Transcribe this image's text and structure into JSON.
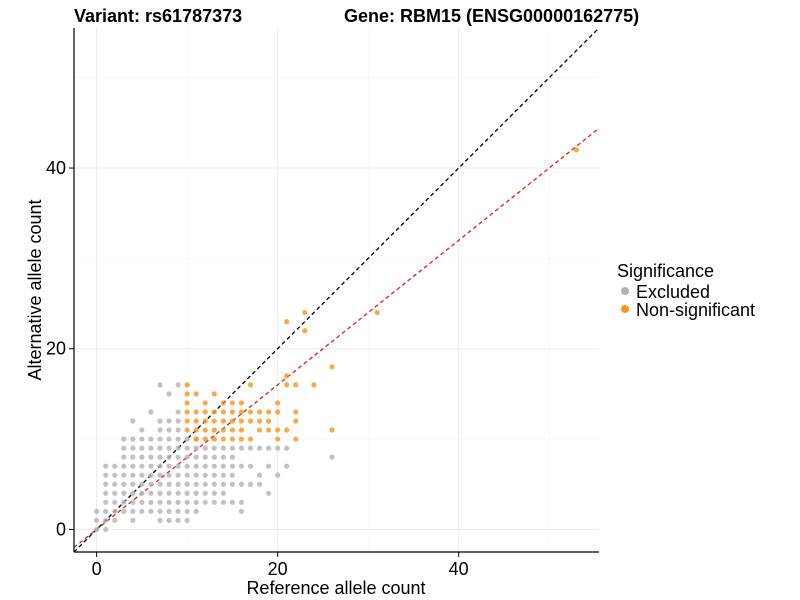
{
  "header": {
    "variant_title": "Variant: rs61787373",
    "gene_title": "Gene: RBM15 (ENSG00000162775)"
  },
  "chart_data": {
    "type": "scatter",
    "xlabel": "Reference allele count",
    "ylabel": "Alternative allele count",
    "xlim": [
      -2.5,
      55.5
    ],
    "ylim": [
      -2.5,
      55.5
    ],
    "x_ticks": [
      0,
      20,
      40
    ],
    "y_ticks": [
      0,
      20,
      40
    ],
    "grid": true,
    "legend": {
      "title": "Significance",
      "placement": "right",
      "items": [
        {
          "name": "Excluded",
          "color": "#b3b3b3"
        },
        {
          "name": "Non-significant",
          "color": "#f7941d"
        }
      ]
    },
    "reference_lines": [
      {
        "type": "y=x",
        "color": "#000000",
        "style": "dashed"
      },
      {
        "type": "fit",
        "slope": 0.8,
        "color": "#e41a1c",
        "style": "dashed"
      }
    ],
    "series": [
      {
        "name": "Excluded",
        "color": "#b3b3b3",
        "points": [
          [
            0,
            0
          ],
          [
            0,
            1
          ],
          [
            0,
            2
          ],
          [
            1,
            0
          ],
          [
            1,
            1
          ],
          [
            1,
            2
          ],
          [
            1,
            3
          ],
          [
            1,
            4
          ],
          [
            1,
            5
          ],
          [
            1,
            6
          ],
          [
            1,
            7
          ],
          [
            2,
            1
          ],
          [
            2,
            2
          ],
          [
            2,
            3
          ],
          [
            2,
            4
          ],
          [
            2,
            5
          ],
          [
            2,
            6
          ],
          [
            2,
            7
          ],
          [
            3,
            2
          ],
          [
            3,
            3
          ],
          [
            3,
            4
          ],
          [
            3,
            5
          ],
          [
            3,
            6
          ],
          [
            3,
            7
          ],
          [
            3,
            8
          ],
          [
            3,
            9
          ],
          [
            3,
            10
          ],
          [
            4,
            1
          ],
          [
            4,
            2
          ],
          [
            4,
            3
          ],
          [
            4,
            4
          ],
          [
            4,
            5
          ],
          [
            4,
            6
          ],
          [
            4,
            7
          ],
          [
            4,
            8
          ],
          [
            4,
            9
          ],
          [
            4,
            10
          ],
          [
            4,
            12
          ],
          [
            5,
            2
          ],
          [
            5,
            3
          ],
          [
            5,
            4
          ],
          [
            5,
            5
          ],
          [
            5,
            6
          ],
          [
            5,
            7
          ],
          [
            5,
            8
          ],
          [
            5,
            9
          ],
          [
            5,
            10
          ],
          [
            5,
            11
          ],
          [
            6,
            2
          ],
          [
            6,
            3
          ],
          [
            6,
            4
          ],
          [
            6,
            5
          ],
          [
            6,
            6
          ],
          [
            6,
            7
          ],
          [
            6,
            8
          ],
          [
            6,
            9
          ],
          [
            6,
            10
          ],
          [
            6,
            13
          ],
          [
            7,
            1
          ],
          [
            7,
            2
          ],
          [
            7,
            3
          ],
          [
            7,
            4
          ],
          [
            7,
            5
          ],
          [
            7,
            6
          ],
          [
            7,
            7
          ],
          [
            7,
            8
          ],
          [
            7,
            9
          ],
          [
            7,
            10
          ],
          [
            7,
            11
          ],
          [
            7,
            12
          ],
          [
            7,
            16
          ],
          [
            8,
            1
          ],
          [
            8,
            2
          ],
          [
            8,
            3
          ],
          [
            8,
            4
          ],
          [
            8,
            5
          ],
          [
            8,
            6
          ],
          [
            8,
            7
          ],
          [
            8,
            8
          ],
          [
            8,
            9
          ],
          [
            8,
            10
          ],
          [
            8,
            11
          ],
          [
            8,
            12
          ],
          [
            8,
            15
          ],
          [
            9,
            1
          ],
          [
            9,
            2
          ],
          [
            9,
            3
          ],
          [
            9,
            4
          ],
          [
            9,
            5
          ],
          [
            9,
            6
          ],
          [
            9,
            7
          ],
          [
            9,
            8
          ],
          [
            9,
            9
          ],
          [
            9,
            10
          ],
          [
            9,
            11
          ],
          [
            9,
            12
          ],
          [
            9,
            13
          ],
          [
            9,
            16
          ],
          [
            10,
            1
          ],
          [
            10,
            2
          ],
          [
            10,
            3
          ],
          [
            10,
            4
          ],
          [
            10,
            5
          ],
          [
            10,
            6
          ],
          [
            10,
            7
          ],
          [
            10,
            8
          ],
          [
            10,
            9
          ],
          [
            10,
            10
          ],
          [
            11,
            2
          ],
          [
            11,
            3
          ],
          [
            11,
            4
          ],
          [
            11,
            5
          ],
          [
            11,
            6
          ],
          [
            11,
            7
          ],
          [
            11,
            8
          ],
          [
            11,
            9
          ],
          [
            11,
            10
          ],
          [
            12,
            3
          ],
          [
            12,
            4
          ],
          [
            12,
            5
          ],
          [
            12,
            6
          ],
          [
            12,
            7
          ],
          [
            12,
            8
          ],
          [
            12,
            9
          ],
          [
            13,
            3
          ],
          [
            13,
            4
          ],
          [
            13,
            5
          ],
          [
            13,
            6
          ],
          [
            13,
            7
          ],
          [
            13,
            8
          ],
          [
            13,
            9
          ],
          [
            14,
            3
          ],
          [
            14,
            4
          ],
          [
            14,
            5
          ],
          [
            14,
            6
          ],
          [
            14,
            7
          ],
          [
            14,
            8
          ],
          [
            14,
            9
          ],
          [
            15,
            3
          ],
          [
            15,
            5
          ],
          [
            15,
            6
          ],
          [
            15,
            7
          ],
          [
            15,
            8
          ],
          [
            15,
            9
          ],
          [
            16,
            2
          ],
          [
            16,
            3
          ],
          [
            16,
            5
          ],
          [
            16,
            7
          ],
          [
            16,
            9
          ],
          [
            17,
            5
          ],
          [
            17,
            7
          ],
          [
            17,
            9
          ],
          [
            18,
            5
          ],
          [
            18,
            9
          ],
          [
            18,
            6
          ],
          [
            19,
            9
          ],
          [
            19,
            7
          ],
          [
            20,
            9
          ],
          [
            20,
            6
          ],
          [
            21,
            9
          ],
          [
            21,
            7
          ],
          [
            19,
            4
          ],
          [
            26,
            8
          ]
        ]
      },
      {
        "name": "Non-significant",
        "color": "#f7941d",
        "points": [
          [
            10,
            11
          ],
          [
            10,
            12
          ],
          [
            10,
            13
          ],
          [
            10,
            14
          ],
          [
            10,
            15
          ],
          [
            10,
            16
          ],
          [
            11,
            10
          ],
          [
            11,
            11
          ],
          [
            11,
            12
          ],
          [
            11,
            13
          ],
          [
            11,
            15
          ],
          [
            12,
            10
          ],
          [
            12,
            11
          ],
          [
            12,
            12
          ],
          [
            12,
            13
          ],
          [
            12,
            14
          ],
          [
            13,
            10
          ],
          [
            13,
            11
          ],
          [
            13,
            12
          ],
          [
            13,
            13
          ],
          [
            13,
            15
          ],
          [
            14,
            10
          ],
          [
            14,
            11
          ],
          [
            14,
            12
          ],
          [
            14,
            13
          ],
          [
            14,
            14
          ],
          [
            15,
            10
          ],
          [
            15,
            11
          ],
          [
            15,
            12
          ],
          [
            15,
            13
          ],
          [
            15,
            14
          ],
          [
            16,
            10
          ],
          [
            16,
            11
          ],
          [
            16,
            12
          ],
          [
            16,
            13
          ],
          [
            16,
            14
          ],
          [
            17,
            10
          ],
          [
            17,
            12
          ],
          [
            17,
            13
          ],
          [
            17,
            16
          ],
          [
            18,
            11
          ],
          [
            18,
            12
          ],
          [
            18,
            13
          ],
          [
            19,
            11
          ],
          [
            19,
            12
          ],
          [
            19,
            13
          ],
          [
            20,
            10
          ],
          [
            20,
            11
          ],
          [
            20,
            13
          ],
          [
            20,
            14
          ],
          [
            21,
            11
          ],
          [
            21,
            16
          ],
          [
            21,
            17
          ],
          [
            21,
            23
          ],
          [
            22,
            10
          ],
          [
            22,
            12
          ],
          [
            22,
            13
          ],
          [
            22,
            16
          ],
          [
            23,
            22
          ],
          [
            23,
            24
          ],
          [
            24,
            16
          ],
          [
            26,
            11
          ],
          [
            26,
            18
          ],
          [
            31,
            24
          ],
          [
            53,
            42
          ]
        ]
      }
    ]
  }
}
